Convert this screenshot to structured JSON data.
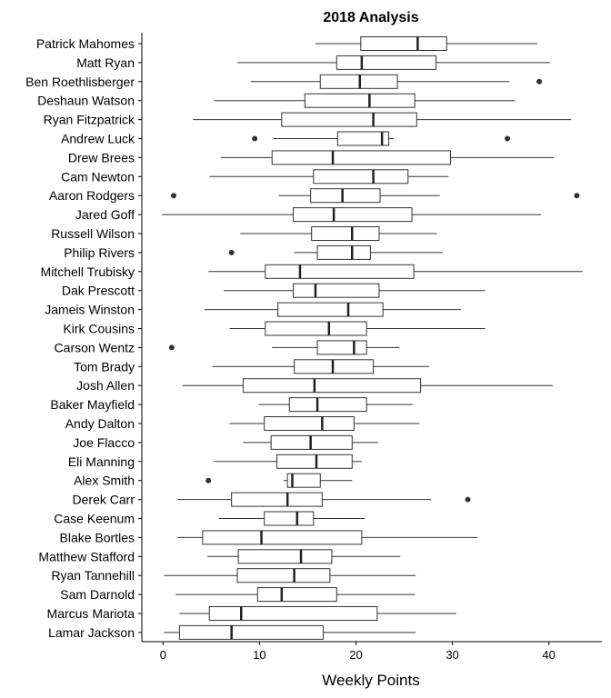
{
  "chart_data": {
    "type": "boxplot",
    "orientation": "horizontal",
    "title": "2018 Analysis",
    "xlabel": "Weekly Points",
    "ylabel": "",
    "xlim": [
      -2.2,
      45.5
    ],
    "xticks": [
      0,
      10,
      20,
      30,
      40
    ],
    "grid": false,
    "colors": {
      "box_fill": "#ffffff",
      "box_stroke": "#333333",
      "median": "#222222",
      "outlier": "#333333",
      "axis": "#000000"
    },
    "series": [
      {
        "name": "Patrick Mahomes",
        "min": 15.8,
        "q1": 20.5,
        "median": 26.4,
        "q3": 29.4,
        "max": 38.8,
        "outliers": []
      },
      {
        "name": "Matt Ryan",
        "min": 7.7,
        "q1": 18.0,
        "median": 20.6,
        "q3": 28.3,
        "max": 40.1,
        "outliers": []
      },
      {
        "name": "Ben Roethlisberger",
        "min": 9.1,
        "q1": 16.3,
        "median": 20.4,
        "q3": 24.3,
        "max": 35.9,
        "outliers": [
          39.0
        ]
      },
      {
        "name": "Deshaun Watson",
        "min": 5.3,
        "q1": 14.7,
        "median": 21.4,
        "q3": 26.1,
        "max": 36.5,
        "outliers": []
      },
      {
        "name": "Ryan Fitzpatrick",
        "min": 3.1,
        "q1": 12.3,
        "median": 21.8,
        "q3": 26.3,
        "max": 42.3,
        "outliers": []
      },
      {
        "name": "Andrew Luck",
        "min": 11.4,
        "q1": 18.1,
        "median": 22.7,
        "q3": 23.4,
        "max": 23.9,
        "outliers": [
          9.5,
          35.7
        ]
      },
      {
        "name": "Drew Brees",
        "min": 6.0,
        "q1": 11.3,
        "median": 17.6,
        "q3": 29.8,
        "max": 40.5,
        "outliers": []
      },
      {
        "name": "Cam Newton",
        "min": 4.8,
        "q1": 15.6,
        "median": 21.8,
        "q3": 25.4,
        "max": 29.6,
        "outliers": []
      },
      {
        "name": "Aaron Rodgers",
        "min": 12.0,
        "q1": 15.3,
        "median": 18.6,
        "q3": 22.5,
        "max": 28.7,
        "outliers": [
          1.1,
          42.9
        ]
      },
      {
        "name": "Jared Goff",
        "min": -0.1,
        "q1": 13.5,
        "median": 17.7,
        "q3": 25.8,
        "max": 39.2,
        "outliers": []
      },
      {
        "name": "Russell Wilson",
        "min": 8.0,
        "q1": 15.4,
        "median": 19.6,
        "q3": 22.4,
        "max": 28.4,
        "outliers": []
      },
      {
        "name": "Philip Rivers",
        "min": 13.6,
        "q1": 16.0,
        "median": 19.6,
        "q3": 21.5,
        "max": 29.0,
        "outliers": [
          7.1
        ]
      },
      {
        "name": "Mitchell Trubisky",
        "min": 4.7,
        "q1": 10.6,
        "median": 14.2,
        "q3": 26.0,
        "max": 43.5,
        "outliers": []
      },
      {
        "name": "Dak Prescott",
        "min": 6.3,
        "q1": 13.5,
        "median": 15.8,
        "q3": 22.4,
        "max": 33.4,
        "outliers": []
      },
      {
        "name": "Jameis Winston",
        "min": 4.3,
        "q1": 11.9,
        "median": 19.2,
        "q3": 22.8,
        "max": 30.9,
        "outliers": []
      },
      {
        "name": "Kirk Cousins",
        "min": 6.9,
        "q1": 10.6,
        "median": 17.2,
        "q3": 21.1,
        "max": 33.4,
        "outliers": []
      },
      {
        "name": "Carson Wentz",
        "min": 11.3,
        "q1": 16.0,
        "median": 19.8,
        "q3": 21.1,
        "max": 24.5,
        "outliers": [
          0.9
        ]
      },
      {
        "name": "Tom Brady",
        "min": 5.1,
        "q1": 13.6,
        "median": 17.6,
        "q3": 21.8,
        "max": 27.6,
        "outliers": []
      },
      {
        "name": "Josh Allen",
        "min": 2.0,
        "q1": 8.3,
        "median": 15.7,
        "q3": 26.7,
        "max": 40.4,
        "outliers": []
      },
      {
        "name": "Baker Mayfield",
        "min": 9.9,
        "q1": 13.1,
        "median": 16.0,
        "q3": 21.1,
        "max": 25.9,
        "outliers": []
      },
      {
        "name": "Andy Dalton",
        "min": 6.9,
        "q1": 10.5,
        "median": 16.5,
        "q3": 19.8,
        "max": 26.6,
        "outliers": []
      },
      {
        "name": "Joe Flacco",
        "min": 8.3,
        "q1": 11.2,
        "median": 15.3,
        "q3": 19.6,
        "max": 22.3,
        "outliers": []
      },
      {
        "name": "Eli Manning",
        "min": 5.3,
        "q1": 11.8,
        "median": 15.9,
        "q3": 19.6,
        "max": 20.6,
        "outliers": []
      },
      {
        "name": "Alex Smith",
        "min": 12.5,
        "q1": 12.9,
        "median": 13.4,
        "q3": 16.3,
        "max": 19.6,
        "outliers": [
          4.7
        ]
      },
      {
        "name": "Derek Carr",
        "min": 1.5,
        "q1": 7.1,
        "median": 12.9,
        "q3": 16.5,
        "max": 27.8,
        "outliers": [
          31.6
        ]
      },
      {
        "name": "Case Keenum",
        "min": 5.8,
        "q1": 10.5,
        "median": 13.9,
        "q3": 15.6,
        "max": 20.9,
        "outliers": []
      },
      {
        "name": "Blake Bortles",
        "min": 1.5,
        "q1": 4.1,
        "median": 10.2,
        "q3": 20.6,
        "max": 32.6,
        "outliers": []
      },
      {
        "name": "Matthew Stafford",
        "min": 4.6,
        "q1": 7.8,
        "median": 14.3,
        "q3": 17.5,
        "max": 24.6,
        "outliers": []
      },
      {
        "name": "Ryan Tannehill",
        "min": 0.1,
        "q1": 7.7,
        "median": 13.6,
        "q3": 17.3,
        "max": 26.2,
        "outliers": []
      },
      {
        "name": "Sam Darnold",
        "min": 1.3,
        "q1": 9.8,
        "median": 12.3,
        "q3": 18.0,
        "max": 26.1,
        "outliers": []
      },
      {
        "name": "Marcus Mariota",
        "min": 1.7,
        "q1": 4.8,
        "median": 8.1,
        "q3": 22.2,
        "max": 30.4,
        "outliers": []
      },
      {
        "name": "Lamar Jackson",
        "min": 0.1,
        "q1": 1.7,
        "median": 7.1,
        "q3": 16.6,
        "max": 26.2,
        "outliers": []
      }
    ]
  }
}
